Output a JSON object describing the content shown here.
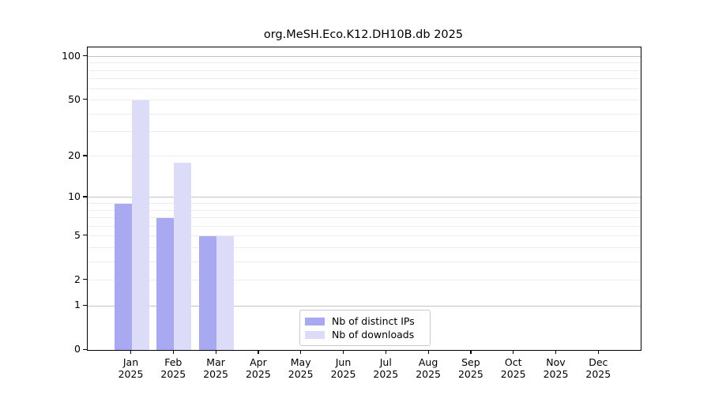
{
  "chart_data": {
    "type": "bar",
    "title": "org.MeSH.Eco.K12.DH10B.db 2025",
    "categories": [
      "Jan",
      "Feb",
      "Mar",
      "Apr",
      "May",
      "Jun",
      "Jul",
      "Aug",
      "Sep",
      "Oct",
      "Nov",
      "Dec"
    ],
    "x_year": "2025",
    "series": [
      {
        "name": "Nb of distinct IPs",
        "color": "#a9a9f1",
        "values": [
          9,
          7,
          5,
          0,
          0,
          0,
          0,
          0,
          0,
          0,
          0,
          0
        ]
      },
      {
        "name": "Nb of downloads",
        "color": "#dcdcf8",
        "values": [
          50,
          18,
          5,
          0,
          0,
          0,
          0,
          0,
          0,
          0,
          0,
          0
        ]
      }
    ],
    "y_axis": {
      "scale": "log1p",
      "ticks": [
        0,
        1,
        2,
        5,
        10,
        20,
        50,
        100
      ],
      "range": [
        0,
        100
      ],
      "major_gridlines": [
        1,
        10,
        100
      ],
      "minor_gridlines": [
        2,
        3,
        4,
        5,
        6,
        7,
        8,
        9,
        20,
        30,
        40,
        50,
        60,
        70,
        80,
        90
      ]
    },
    "legend": {
      "position": "inside-bottom-center",
      "entries": [
        "Nb of distinct IPs",
        "Nb of downloads"
      ]
    },
    "grid": "horizontal-only",
    "colors": {
      "distinct_ips_bar": "#a9a9f1",
      "downloads_bar": "#dcdcf8",
      "major_gridline": "#c3c3c3",
      "minor_gridline": "#ececec",
      "frame": "#000000"
    }
  }
}
